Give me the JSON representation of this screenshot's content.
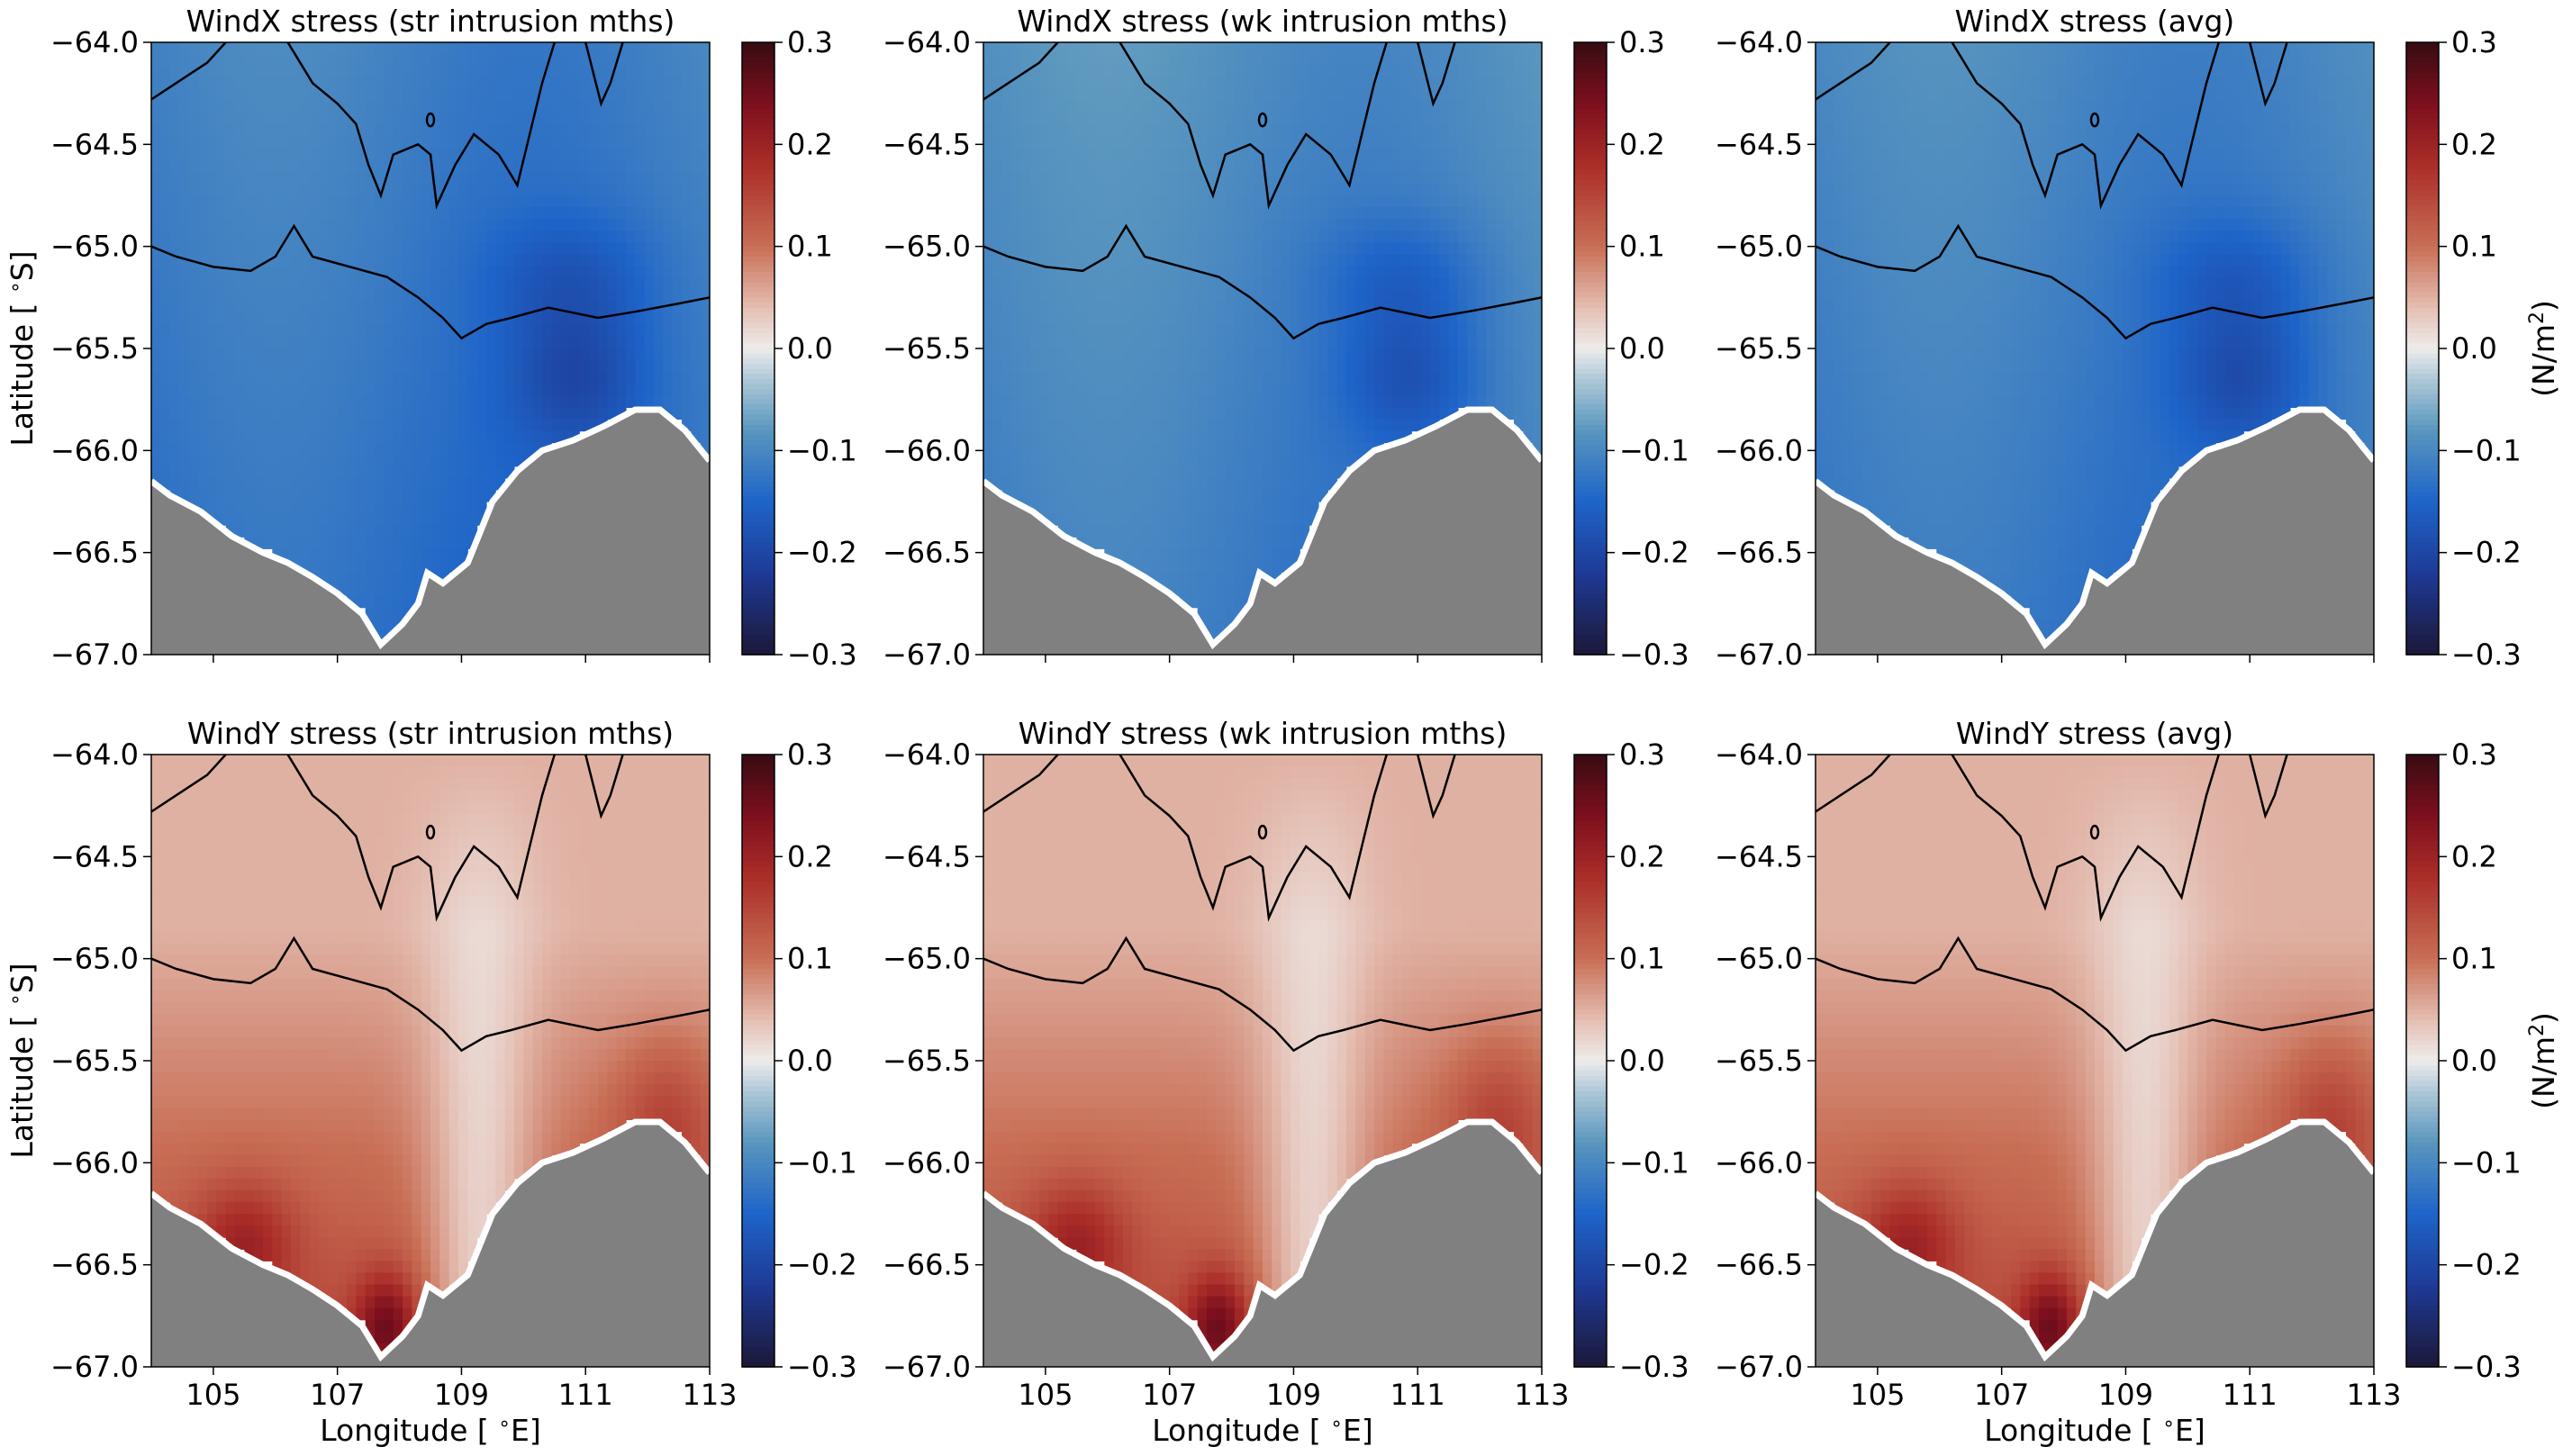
{
  "figure": {
    "background": "#ffffff",
    "land_color": "#808080",
    "coast_color": "#ffffff",
    "contour_color": "#000000"
  },
  "chart_data": [
    {
      "type": "heatmap",
      "title": "WindX stress (str intrusion mths)",
      "variable": "WindX",
      "variant": "str",
      "bias": -0.14,
      "xlabel": "",
      "ylabel": "Latitude [$^\\circ$S]",
      "xlim": [
        104,
        113
      ],
      "ylim": [
        -67.0,
        -64.0
      ],
      "xticks": [
        "",
        "",
        "",
        "",
        ""
      ],
      "yticks": [
        "−67.0",
        "−66.5",
        "−66.0",
        "−65.5",
        "−65.0",
        "−64.5",
        "−64.0"
      ],
      "colorbar": {
        "range": [
          -0.3,
          0.3
        ],
        "colormap": "balance",
        "ticks": [
          "−0.3",
          "−0.2",
          "−0.1",
          "0.0",
          "0.1",
          "0.2",
          "0.3"
        ],
        "label": ""
      }
    },
    {
      "type": "heatmap",
      "title": "WindX stress (wk intrusion mths)",
      "variable": "WindX",
      "variant": "wk",
      "bias": -0.12,
      "xlabel": "",
      "ylabel": "",
      "xlim": [
        104,
        113
      ],
      "ylim": [
        -67.0,
        -64.0
      ],
      "xticks": [
        "",
        "",
        "",
        "",
        ""
      ],
      "yticks": [
        "−67.0",
        "−66.5",
        "−66.0",
        "−65.5",
        "−65.0",
        "−64.5",
        "−64.0"
      ],
      "colorbar": {
        "range": [
          -0.3,
          0.3
        ],
        "colormap": "balance",
        "ticks": [
          "−0.3",
          "−0.2",
          "−0.1",
          "0.0",
          "0.1",
          "0.2",
          "0.3"
        ],
        "label": ""
      }
    },
    {
      "type": "heatmap",
      "title": "WindX stress (avg)",
      "variable": "WindX",
      "variant": "avg",
      "bias": -0.13,
      "xlabel": "",
      "ylabel": "",
      "xlim": [
        104,
        113
      ],
      "ylim": [
        -67.0,
        -64.0
      ],
      "xticks": [
        "",
        "",
        "",
        "",
        ""
      ],
      "yticks": [
        "−67.0",
        "−66.5",
        "−66.0",
        "−65.5",
        "−65.0",
        "−64.5",
        "−64.0"
      ],
      "colorbar": {
        "range": [
          -0.3,
          0.3
        ],
        "colormap": "balance",
        "ticks": [
          "−0.3",
          "−0.2",
          "−0.1",
          "0.0",
          "0.1",
          "0.2",
          "0.3"
        ],
        "label": "(N/m²)"
      }
    },
    {
      "type": "heatmap",
      "title": "WindY stress (str intrusion mths)",
      "variable": "WindY",
      "variant": "str",
      "bias": 0.0,
      "xlabel": "Longitude [$^\\circ$E]",
      "ylabel": "Latitude [$^\\circ$S]",
      "xlim": [
        104,
        113
      ],
      "ylim": [
        -67.0,
        -64.0
      ],
      "xticks": [
        "105",
        "107",
        "109",
        "111",
        "113"
      ],
      "yticks": [
        "−67.0",
        "−66.5",
        "−66.0",
        "−65.5",
        "−65.0",
        "−64.5",
        "−64.0"
      ],
      "colorbar": {
        "range": [
          -0.3,
          0.3
        ],
        "colormap": "balance",
        "ticks": [
          "−0.3",
          "−0.2",
          "−0.1",
          "0.0",
          "0.1",
          "0.2",
          "0.3"
        ],
        "label": ""
      }
    },
    {
      "type": "heatmap",
      "title": "WindY stress (wk intrusion mths)",
      "variable": "WindY",
      "variant": "wk",
      "bias": 0.0,
      "xlabel": "Longitude [$^\\circ$E]",
      "ylabel": "",
      "xlim": [
        104,
        113
      ],
      "ylim": [
        -67.0,
        -64.0
      ],
      "xticks": [
        "105",
        "107",
        "109",
        "111",
        "113"
      ],
      "yticks": [
        "−67.0",
        "−66.5",
        "−66.0",
        "−65.5",
        "−65.0",
        "−64.5",
        "−64.0"
      ],
      "colorbar": {
        "range": [
          -0.3,
          0.3
        ],
        "colormap": "balance",
        "ticks": [
          "−0.3",
          "−0.2",
          "−0.1",
          "0.0",
          "0.1",
          "0.2",
          "0.3"
        ],
        "label": ""
      }
    },
    {
      "type": "heatmap",
      "title": "WindY stress (avg)",
      "variable": "WindY",
      "variant": "avg",
      "bias": 0.0,
      "xlabel": "Longitude [$^\\circ$E]",
      "ylabel": "",
      "xlim": [
        104,
        113
      ],
      "ylim": [
        -67.0,
        -64.0
      ],
      "xticks": [
        "105",
        "107",
        "109",
        "111",
        "113"
      ],
      "yticks": [
        "−67.0",
        "−66.5",
        "−66.0",
        "−65.5",
        "−65.0",
        "−64.5",
        "−64.0"
      ],
      "colorbar": {
        "range": [
          -0.3,
          0.3
        ],
        "colormap": "balance",
        "ticks": [
          "−0.3",
          "−0.2",
          "−0.1",
          "0.0",
          "0.1",
          "0.2",
          "0.3"
        ],
        "label": "(N/m²)"
      }
    }
  ]
}
